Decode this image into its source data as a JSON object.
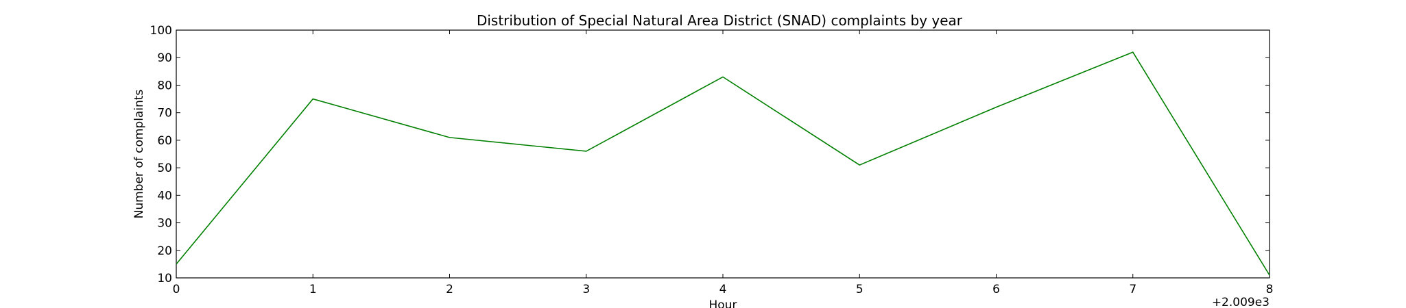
{
  "chart_data": {
    "type": "line",
    "title": "Distribution of  Special Natural Area District (SNAD) complaints by year",
    "xlabel": "Hour",
    "ylabel": "Number of complaints",
    "x_offset_label": "+2.009e3",
    "x": [
      0,
      1,
      2,
      3,
      4,
      5,
      6,
      7,
      8
    ],
    "series": [
      {
        "values": [
          15,
          75,
          61,
          56,
          83,
          51,
          72,
          92,
          11
        ],
        "color": "#008000"
      }
    ],
    "xlim": [
      0,
      8
    ],
    "ylim": [
      10,
      100
    ],
    "xticks": [
      0,
      1,
      2,
      3,
      4,
      5,
      6,
      7,
      8
    ],
    "yticks": [
      10,
      20,
      30,
      40,
      50,
      60,
      70,
      80,
      90,
      100
    ],
    "grid": false,
    "legend": "none"
  }
}
